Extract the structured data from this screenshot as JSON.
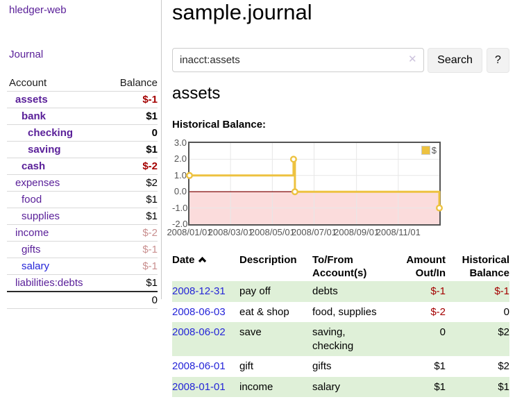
{
  "colors": {
    "link_purple": "#5a2099",
    "link_blue": "#2525d8",
    "negative": "#a40000",
    "negative_muted": "#c98f8f",
    "row_stripe": "#dff0d8",
    "chart_gold": "#EDC240"
  },
  "sidebar": {
    "app_title": "hledger-web",
    "journal_label": "Journal",
    "table": {
      "headers": {
        "account": "Account",
        "balance": "Balance"
      },
      "rows": [
        {
          "label": "assets",
          "indent": 1,
          "bold": true,
          "link_color": "purple",
          "amount": "$-1",
          "amount_style": "negative"
        },
        {
          "label": "bank",
          "indent": 2,
          "bold": true,
          "link_color": "purple",
          "amount": "$1",
          "amount_style": "normal"
        },
        {
          "label": "checking",
          "indent": 3,
          "bold": true,
          "link_color": "purple",
          "amount": "0",
          "amount_style": "normal"
        },
        {
          "label": "saving",
          "indent": 3,
          "bold": true,
          "link_color": "purple",
          "amount": "$1",
          "amount_style": "normal"
        },
        {
          "label": "cash",
          "indent": 2,
          "bold": true,
          "link_color": "purple",
          "amount": "$-2",
          "amount_style": "negative"
        },
        {
          "label": "expenses",
          "indent": 1,
          "bold": false,
          "link_color": "purple",
          "amount": "$2",
          "amount_style": "normal"
        },
        {
          "label": "food",
          "indent": 2,
          "bold": false,
          "link_color": "purple",
          "amount": "$1",
          "amount_style": "normal"
        },
        {
          "label": "supplies",
          "indent": 2,
          "bold": false,
          "link_color": "purple",
          "amount": "$1",
          "amount_style": "normal"
        },
        {
          "label": "income",
          "indent": 1,
          "bold": false,
          "link_color": "purple",
          "amount": "$-2",
          "amount_style": "negative-muted"
        },
        {
          "label": "gifts",
          "indent": 2,
          "bold": false,
          "link_color": "purple",
          "amount": "$-1",
          "amount_style": "negative-muted"
        },
        {
          "label": "salary",
          "indent": 2,
          "bold": false,
          "link_color": "blue",
          "amount": "$-1",
          "amount_style": "negative-muted"
        },
        {
          "label": "liabilities:debts",
          "indent": 1,
          "bold": false,
          "link_color": "purple",
          "amount": "$1",
          "amount_style": "normal"
        }
      ],
      "total": "0"
    }
  },
  "header": {
    "title": "sample.journal"
  },
  "search": {
    "query": "inacct:assets",
    "clear_icon": "✕",
    "button_label": "Search",
    "help_label": "?"
  },
  "account_page": {
    "heading": "assets",
    "chart_label": "Historical Balance:"
  },
  "chart_data": {
    "type": "line",
    "step": true,
    "title": "Historical Balance",
    "series": [
      {
        "name": "$",
        "color": "#EDC240",
        "points": [
          [
            "2008-01-01",
            1
          ],
          [
            "2008-06-01",
            2
          ],
          [
            "2008-06-03",
            0
          ],
          [
            "2008-12-31",
            -1
          ]
        ]
      }
    ],
    "x_range": [
      "2008-01-01",
      "2008-12-31"
    ],
    "ylim": [
      -2,
      3
    ],
    "x_ticks": [
      {
        "date": "2008-01-01",
        "label": "2008/01/01"
      },
      {
        "date": "2008-03-01",
        "label": "2008/03/01"
      },
      {
        "date": "2008-05-01",
        "label": "2008/05/01"
      },
      {
        "date": "2008-07-01",
        "label": "2008/07/01"
      },
      {
        "date": "2008-09-01",
        "label": "2008/09/01"
      },
      {
        "date": "2008-11-01",
        "label": "2008/11/01"
      }
    ],
    "y_ticks": [
      {
        "v": 3,
        "label": "3.0"
      },
      {
        "v": 2,
        "label": "2.0"
      },
      {
        "v": 1,
        "label": "1.0"
      },
      {
        "v": 0,
        "label": "0.0"
      },
      {
        "v": -1,
        "label": "-1.0"
      },
      {
        "v": -2,
        "label": "-2.0"
      }
    ],
    "grid": true,
    "negative_region_color": "#fbdcdc",
    "zero_line_color": "#8b1c1c",
    "legend": {
      "position": "top-right",
      "label": "$"
    }
  },
  "register": {
    "headers": {
      "date": "Date",
      "description": "Description",
      "account": "To/From\nAccount(s)",
      "amount": "Amount\nOut/In",
      "balance": "Historical\nBalance"
    },
    "rows": [
      {
        "date": "2008-12-31",
        "description": "pay off",
        "account": "debts",
        "amount": "$-1",
        "amount_negative": true,
        "balance": "$-1",
        "balance_negative": true
      },
      {
        "date": "2008-06-03",
        "description": "eat & shop",
        "account": "food, supplies",
        "amount": "$-2",
        "amount_negative": true,
        "balance": "0",
        "balance_negative": false
      },
      {
        "date": "2008-06-02",
        "description": "save",
        "account": "saving,\nchecking",
        "amount": "0",
        "amount_negative": false,
        "balance": "$2",
        "balance_negative": false
      },
      {
        "date": "2008-06-01",
        "description": "gift",
        "account": "gifts",
        "amount": "$1",
        "amount_negative": false,
        "balance": "$2",
        "balance_negative": false
      },
      {
        "date": "2008-01-01",
        "description": "income",
        "account": "salary",
        "amount": "$1",
        "amount_negative": false,
        "balance": "$1",
        "balance_negative": false
      }
    ]
  }
}
